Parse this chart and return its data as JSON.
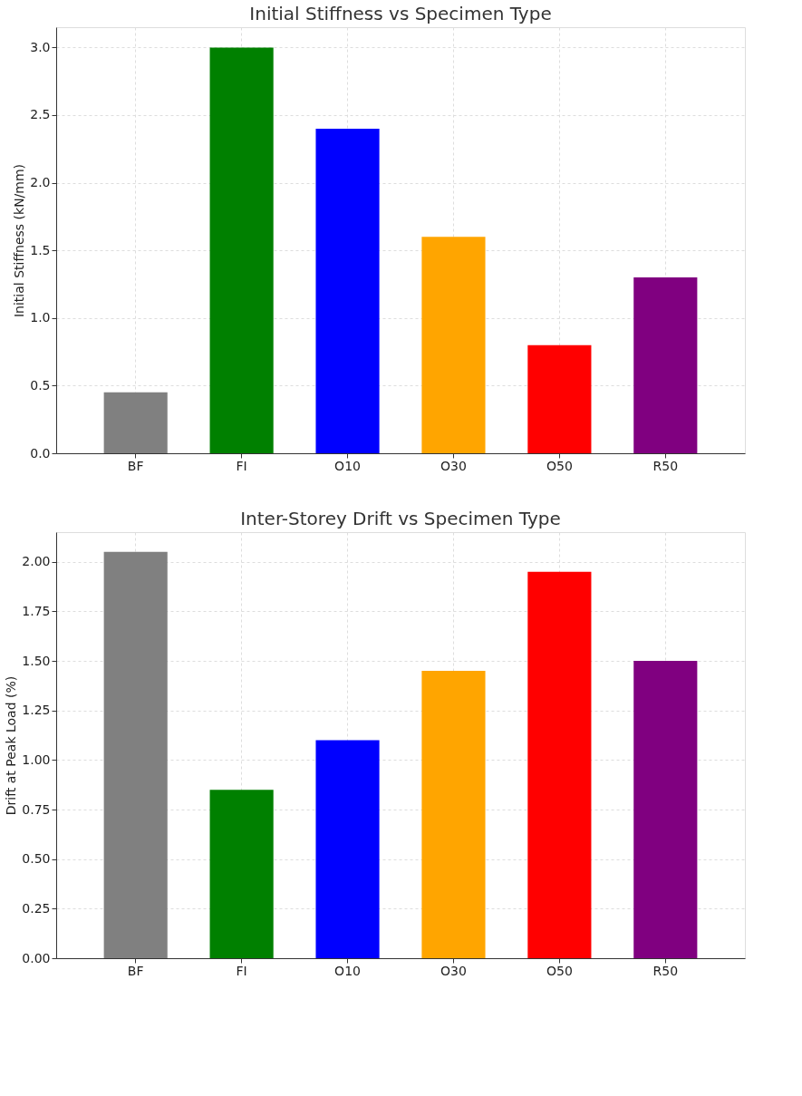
{
  "chart_data": [
    {
      "type": "bar",
      "title": "Initial Stiffness vs Specimen Type",
      "ylabel": "Initial Stiffness (kN/mm)",
      "categories": [
        "BF",
        "FI",
        "O10",
        "O30",
        "O50",
        "R50"
      ],
      "values": [
        0.45,
        3.0,
        2.4,
        1.6,
        0.8,
        1.3
      ],
      "colors": [
        "#808080",
        "#008000",
        "#0000ff",
        "#ffa500",
        "#ff0000",
        "#800080"
      ],
      "ylim": [
        0,
        3.15
      ],
      "yticks": [
        {
          "value": 0,
          "label": "0.0"
        },
        {
          "value": 0.5,
          "label": "0.5"
        },
        {
          "value": 1,
          "label": "1.0"
        },
        {
          "value": 1.5,
          "label": "1.5"
        },
        {
          "value": 2,
          "label": "2.0"
        },
        {
          "value": 2.5,
          "label": "2.5"
        },
        {
          "value": 3,
          "label": "3.0"
        }
      ],
      "grid": true
    },
    {
      "type": "bar",
      "title": "Inter-Storey Drift vs Specimen Type",
      "ylabel": "Drift at Peak Load (%)",
      "categories": [
        "BF",
        "FI",
        "O10",
        "O30",
        "O50",
        "R50"
      ],
      "values": [
        2.05,
        0.85,
        1.1,
        1.45,
        1.95,
        1.5
      ],
      "colors": [
        "#808080",
        "#008000",
        "#0000ff",
        "#ffa500",
        "#ff0000",
        "#800080"
      ],
      "ylim": [
        0,
        2.15
      ],
      "yticks": [
        {
          "value": 0,
          "label": "0.00"
        },
        {
          "value": 0.25,
          "label": "0.25"
        },
        {
          "value": 0.5,
          "label": "0.50"
        },
        {
          "value": 0.75,
          "label": "0.75"
        },
        {
          "value": 1,
          "label": "1.00"
        },
        {
          "value": 1.25,
          "label": "1.25"
        },
        {
          "value": 1.5,
          "label": "1.50"
        },
        {
          "value": 1.75,
          "label": "1.75"
        },
        {
          "value": 2,
          "label": "2.00"
        }
      ],
      "grid": true
    }
  ]
}
